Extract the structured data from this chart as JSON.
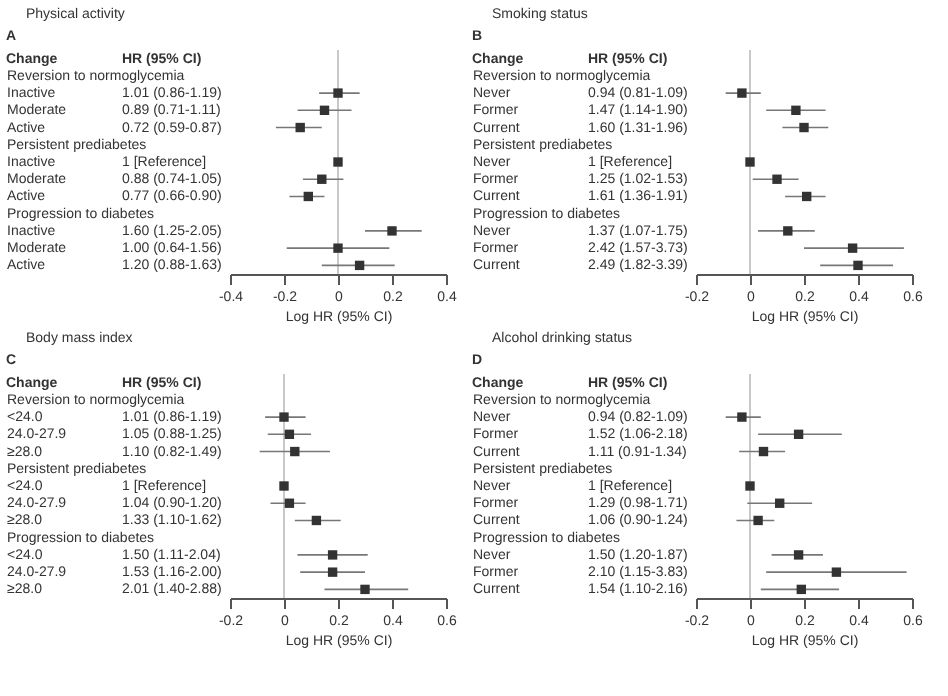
{
  "chart_data": [
    {
      "type": "scatter",
      "orientation": "horizontal",
      "title": "Physical activity",
      "xlabel": "Log HR (95% CI)",
      "annotations": [
        "A",
        "Change",
        "HR (95% CI)",
        "1.01 (0.86-1.19)",
        "0.89 (0.71-1.11)",
        "0.72 (0.59-0.87)",
        "1 [Reference]",
        "0.88 (0.74-1.05)",
        "0.77 (0.66-0.90)",
        "1.60 (1.25-2.05)",
        "1.00 (0.64-1.56)",
        "1.20 (0.88-1.63)"
      ],
      "marker": "square",
      "grid": false,
      "categories": [
        "Reversion to normoglycemia",
        "Inactive",
        "Moderate",
        "Active",
        "Persistent prediabetes",
        "Inactive",
        "Moderate",
        "Active",
        "Progression to diabetes",
        "Inactive",
        "Moderate",
        "Active"
      ],
      "series": [
        {
          "color": "#333333",
          "values": [
            null,
            0.0,
            -0.05,
            -0.14,
            null,
            0,
            -0.06,
            -0.11,
            null,
            0.2,
            0,
            0.08
          ],
          "errors": [
            null,
            [
              -0.07,
              0.08
            ],
            [
              -0.15,
              0.05
            ],
            [
              -0.23,
              -0.06
            ],
            null,
            null,
            [
              -0.13,
              0.02
            ],
            [
              -0.18,
              -0.05
            ],
            null,
            [
              0.1,
              0.31
            ],
            [
              -0.19,
              0.19
            ],
            [
              -0.06,
              0.21
            ]
          ]
        }
      ],
      "xlim": [
        -0.4,
        0.4
      ],
      "xticks": [
        -0.4,
        -0.2,
        0,
        0.2,
        0.4
      ],
      "ref_lines": [
        {
          "axis": "x",
          "value": 0,
          "color": "#bbbbbb"
        }
      ]
    },
    {
      "type": "scatter",
      "orientation": "horizontal",
      "title": "Smoking status",
      "xlabel": "Log HR (95% CI)",
      "annotations": [
        "B",
        "Change",
        "HR (95% CI)",
        "0.94 (0.81-1.09)",
        "1.47 (1.14-1.90)",
        "1.60 (1.31-1.96)",
        "1 [Reference]",
        "1.25 (1.02-1.53)",
        "1.61 (1.36-1.91)",
        "1.37 (1.07-1.75)",
        "2.42 (1.57-3.73)",
        "2.49 (1.82-3.39)"
      ],
      "marker": "square",
      "grid": false,
      "categories": [
        "Reversion to normoglycemia",
        "Never",
        "Former",
        "Current",
        "Persistent prediabetes",
        "Never",
        "Former",
        "Current",
        "Progression to diabetes",
        "Never",
        "Former",
        "Current"
      ],
      "series": [
        {
          "color": "#333333",
          "values": [
            null,
            -0.03,
            0.17,
            0.2,
            null,
            0,
            0.1,
            0.21,
            null,
            0.14,
            0.38,
            0.4
          ],
          "errors": [
            null,
            [
              -0.09,
              0.04
            ],
            [
              0.06,
              0.28
            ],
            [
              0.12,
              0.29
            ],
            null,
            null,
            [
              0.01,
              0.18
            ],
            [
              0.13,
              0.28
            ],
            null,
            [
              0.03,
              0.24
            ],
            [
              0.2,
              0.57
            ],
            [
              0.26,
              0.53
            ]
          ]
        }
      ],
      "xlim": [
        -0.2,
        0.6
      ],
      "xticks": [
        -0.2,
        0,
        0.2,
        0.4,
        0.6
      ],
      "ref_lines": [
        {
          "axis": "x",
          "value": 0,
          "color": "#bbbbbb"
        }
      ]
    },
    {
      "type": "scatter",
      "orientation": "horizontal",
      "title": "Body mass index",
      "xlabel": "Log HR (95% CI)",
      "annotations": [
        "C",
        "Change",
        "HR (95% CI)",
        "1.01 (0.86-1.19)",
        "1.05 (0.88-1.25)",
        "1.10 (0.82-1.49)",
        "1 [Reference]",
        "1.04 (0.90-1.20)",
        "1.33 (1.10-1.62)",
        "1.50 (1.11-2.04)",
        "1.53 (1.16-2.00)",
        "2.01 (1.40-2.88)"
      ],
      "marker": "square",
      "grid": false,
      "categories": [
        "Reversion to normoglycemia",
        "<24.0",
        "24.0-27.9",
        "≥28.0",
        "Persistent prediabetes",
        "<24.0",
        "24.0-27.9",
        "≥28.0",
        "Progression to diabetes",
        "<24.0",
        "24.0-27.9",
        "≥28.0"
      ],
      "series": [
        {
          "color": "#333333",
          "values": [
            null,
            0.0,
            0.02,
            0.04,
            null,
            0,
            0.02,
            0.12,
            null,
            0.18,
            0.18,
            0.3
          ],
          "errors": [
            null,
            [
              -0.07,
              0.08
            ],
            [
              -0.06,
              0.1
            ],
            [
              -0.09,
              0.17
            ],
            null,
            null,
            [
              -0.05,
              0.08
            ],
            [
              0.04,
              0.21
            ],
            null,
            [
              0.05,
              0.31
            ],
            [
              0.06,
              0.3
            ],
            [
              0.15,
              0.46
            ]
          ]
        }
      ],
      "xlim": [
        -0.2,
        0.6
      ],
      "xticks": [
        -0.2,
        0,
        0.2,
        0.4,
        0.6
      ],
      "ref_lines": [
        {
          "axis": "x",
          "value": 0,
          "color": "#bbbbbb"
        }
      ]
    },
    {
      "type": "scatter",
      "orientation": "horizontal",
      "title": "Alcohol drinking status",
      "xlabel": "Log HR (95% CI)",
      "annotations": [
        "D",
        "Change",
        "HR (95% CI)",
        "0.94 (0.82-1.09)",
        "1.52 (1.06-2.18)",
        "1.11 (0.91-1.34)",
        "1 [Reference]",
        "1.29 (0.98-1.71)",
        "1.06 (0.90-1.24)",
        "1.50 (1.20-1.87)",
        "2.10 (1.15-3.83)",
        "1.54 (1.10-2.16)"
      ],
      "marker": "square",
      "grid": false,
      "categories": [
        "Reversion to normoglycemia",
        "Never",
        "Former",
        "Current",
        "Persistent prediabetes",
        "Never",
        "Former",
        "Current",
        "Progression to diabetes",
        "Never",
        "Former",
        "Current"
      ],
      "series": [
        {
          "color": "#333333",
          "values": [
            null,
            -0.03,
            0.18,
            0.05,
            null,
            0,
            0.11,
            0.03,
            null,
            0.18,
            0.32,
            0.19
          ],
          "errors": [
            null,
            [
              -0.09,
              0.04
            ],
            [
              0.03,
              0.34
            ],
            [
              -0.04,
              0.13
            ],
            null,
            null,
            [
              -0.01,
              0.23
            ],
            [
              -0.05,
              0.09
            ],
            null,
            [
              0.08,
              0.27
            ],
            [
              0.06,
              0.58
            ],
            [
              0.04,
              0.33
            ]
          ]
        }
      ],
      "xlim": [
        -0.2,
        0.6
      ],
      "xticks": [
        -0.2,
        0,
        0.2,
        0.4,
        0.6
      ],
      "ref_lines": [
        {
          "axis": "x",
          "value": 0,
          "color": "#bbbbbb"
        }
      ]
    }
  ]
}
